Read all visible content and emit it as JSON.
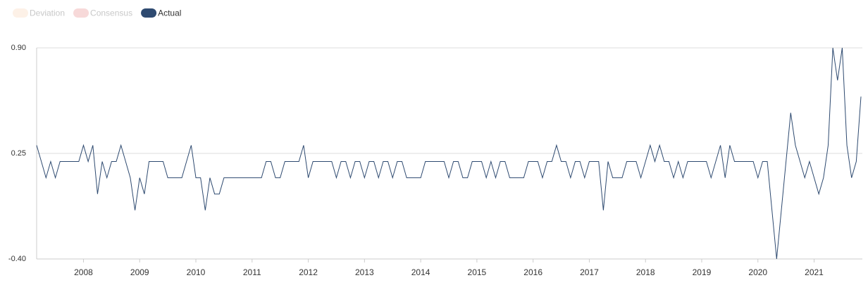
{
  "chart_data": {
    "type": "line",
    "legend": [
      {
        "name": "Deviation",
        "color": "#fdf1e7"
      },
      {
        "name": "Consensus",
        "color": "#f7d9d9"
      }
    ],
    "categories": [
      null,
      null,
      null,
      null,
      null,
      null,
      null,
      null,
      null,
      null,
      "2008",
      null,
      null,
      null,
      null,
      null,
      null,
      null,
      null,
      null,
      null,
      null,
      "2009",
      null,
      null,
      null,
      null,
      null,
      null,
      null,
      null,
      null,
      null,
      null,
      "2010",
      null,
      null,
      null,
      null,
      null,
      null,
      null,
      null,
      null,
      null,
      null,
      "2011",
      null,
      null,
      null,
      null,
      null,
      null,
      null,
      null,
      null,
      null,
      null,
      "2012",
      null,
      null,
      null,
      null,
      null,
      null,
      null,
      null,
      null,
      null,
      null,
      "2013",
      null,
      null,
      null,
      null,
      null,
      null,
      null,
      null,
      null,
      null,
      null,
      "2014",
      null,
      null,
      null,
      null,
      null,
      null,
      null,
      null,
      null,
      null,
      null,
      "2015",
      null,
      null,
      null,
      null,
      null,
      null,
      null,
      null,
      null,
      null,
      null,
      "2016",
      null,
      null,
      null,
      null,
      null,
      null,
      null,
      null,
      null,
      null,
      null,
      "2017",
      null,
      null,
      null,
      null,
      null,
      null,
      null,
      null,
      null,
      null,
      null,
      "2018",
      null,
      null,
      null,
      null,
      null,
      null,
      null,
      null,
      null,
      null,
      null,
      "2019",
      null,
      null,
      null,
      null,
      null,
      null,
      null,
      null,
      null,
      null,
      null,
      "2020",
      null,
      null,
      null,
      null,
      null,
      null,
      null,
      null,
      null,
      null,
      null,
      "2021",
      null,
      null,
      null,
      null,
      null,
      null,
      null,
      null,
      null,
      null
    ],
    "series": [
      {
        "name": "Actual",
        "color": "#2e4a70",
        "values": [
          0.3,
          0.2,
          0.1,
          0.2,
          0.1,
          0.2,
          0.2,
          0.2,
          0.2,
          0.2,
          0.3,
          0.2,
          0.3,
          0.0,
          0.2,
          0.1,
          0.2,
          0.2,
          0.3,
          0.2,
          0.1,
          -0.1,
          0.1,
          0.0,
          0.2,
          0.2,
          0.2,
          0.2,
          0.1,
          0.1,
          0.1,
          0.1,
          0.2,
          0.3,
          0.1,
          0.1,
          -0.1,
          0.1,
          0.0,
          0.0,
          0.1,
          0.1,
          0.1,
          0.1,
          0.1,
          0.1,
          0.1,
          0.1,
          0.1,
          0.2,
          0.2,
          0.1,
          0.1,
          0.2,
          0.2,
          0.2,
          0.2,
          0.3,
          0.1,
          0.2,
          0.2,
          0.2,
          0.2,
          0.2,
          0.1,
          0.2,
          0.2,
          0.1,
          0.2,
          0.2,
          0.1,
          0.2,
          0.2,
          0.1,
          0.2,
          0.2,
          0.1,
          0.2,
          0.2,
          0.1,
          0.1,
          0.1,
          0.1,
          0.2,
          0.2,
          0.2,
          0.2,
          0.2,
          0.1,
          0.2,
          0.2,
          0.1,
          0.1,
          0.2,
          0.2,
          0.2,
          0.1,
          0.2,
          0.1,
          0.2,
          0.2,
          0.1,
          0.1,
          0.1,
          0.1,
          0.2,
          0.2,
          0.2,
          0.1,
          0.2,
          0.2,
          0.3,
          0.2,
          0.2,
          0.1,
          0.2,
          0.2,
          0.1,
          0.2,
          0.2,
          0.2,
          -0.1,
          0.2,
          0.1,
          0.1,
          0.1,
          0.2,
          0.2,
          0.2,
          0.1,
          0.2,
          0.3,
          0.2,
          0.3,
          0.2,
          0.2,
          0.1,
          0.2,
          0.1,
          0.2,
          0.2,
          0.2,
          0.2,
          0.2,
          0.1,
          0.2,
          0.3,
          0.1,
          0.3,
          0.2,
          0.2,
          0.2,
          0.2,
          0.2,
          0.1,
          0.2,
          0.2,
          -0.1,
          -0.4,
          -0.1,
          0.2,
          0.5,
          0.3,
          0.2,
          0.1,
          0.2,
          0.1,
          0.0,
          0.1,
          0.3,
          0.9,
          0.7,
          0.9,
          0.3,
          0.1,
          0.2,
          0.6
        ]
      }
    ],
    "ylim": [
      -0.4,
      0.9
    ],
    "yticks": [
      {
        "value": 0.9,
        "label": "0.90"
      },
      {
        "value": 0.25,
        "label": "0.25"
      },
      {
        "value": -0.4,
        "label": "-0.40"
      }
    ],
    "grid": true
  }
}
